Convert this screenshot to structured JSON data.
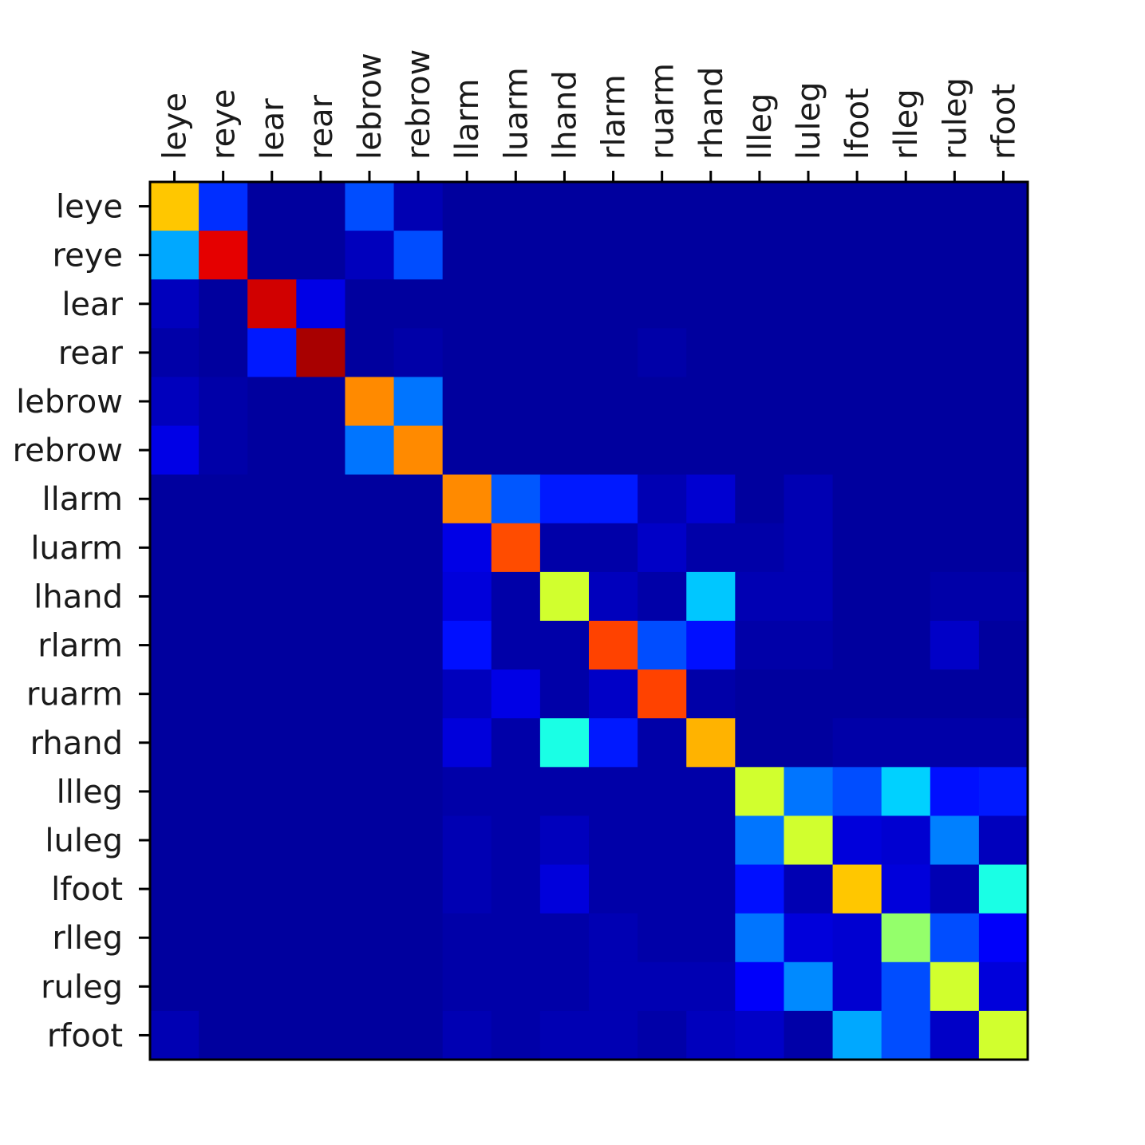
{
  "chart_data": {
    "type": "heatmap",
    "title": "",
    "xlabel": "",
    "ylabel": "",
    "colormap": "jet",
    "value_range": [
      0,
      1
    ],
    "grid": false,
    "x_axis_position": "top",
    "x_label_rotation": -90,
    "labels": [
      "leye",
      "reye",
      "lear",
      "rear",
      "lebrow",
      "rebrow",
      "llarm",
      "luarm",
      "lhand",
      "rlarm",
      "ruarm",
      "rhand",
      "llleg",
      "luleg",
      "lfoot",
      "rlleg",
      "ruleg",
      "rfoot"
    ],
    "matrix": [
      [
        0.68,
        0.17,
        0.03,
        0.03,
        0.2,
        0.05,
        0.03,
        0.03,
        0.03,
        0.03,
        0.03,
        0.03,
        0.03,
        0.03,
        0.03,
        0.03,
        0.03,
        0.03
      ],
      [
        0.29,
        0.9,
        0.03,
        0.03,
        0.06,
        0.2,
        0.03,
        0.03,
        0.03,
        0.03,
        0.03,
        0.03,
        0.03,
        0.03,
        0.03,
        0.03,
        0.03,
        0.03
      ],
      [
        0.06,
        0.03,
        0.92,
        0.1,
        0.03,
        0.03,
        0.03,
        0.03,
        0.03,
        0.03,
        0.03,
        0.03,
        0.03,
        0.03,
        0.03,
        0.03,
        0.03,
        0.03
      ],
      [
        0.04,
        0.03,
        0.15,
        0.96,
        0.03,
        0.04,
        0.03,
        0.03,
        0.03,
        0.03,
        0.04,
        0.03,
        0.03,
        0.03,
        0.03,
        0.03,
        0.03,
        0.03
      ],
      [
        0.06,
        0.04,
        0.03,
        0.03,
        0.74,
        0.24,
        0.03,
        0.03,
        0.03,
        0.03,
        0.03,
        0.03,
        0.03,
        0.03,
        0.03,
        0.03,
        0.03,
        0.03
      ],
      [
        0.1,
        0.04,
        0.03,
        0.03,
        0.24,
        0.74,
        0.03,
        0.03,
        0.03,
        0.03,
        0.03,
        0.03,
        0.03,
        0.03,
        0.03,
        0.03,
        0.03,
        0.03
      ],
      [
        0.03,
        0.03,
        0.03,
        0.03,
        0.03,
        0.03,
        0.74,
        0.21,
        0.15,
        0.15,
        0.05,
        0.08,
        0.03,
        0.05,
        0.03,
        0.03,
        0.03,
        0.03
      ],
      [
        0.03,
        0.03,
        0.03,
        0.03,
        0.03,
        0.03,
        0.1,
        0.8,
        0.04,
        0.04,
        0.07,
        0.04,
        0.04,
        0.05,
        0.03,
        0.03,
        0.03,
        0.03
      ],
      [
        0.03,
        0.03,
        0.03,
        0.03,
        0.03,
        0.03,
        0.09,
        0.04,
        0.58,
        0.06,
        0.04,
        0.32,
        0.05,
        0.05,
        0.03,
        0.03,
        0.04,
        0.04
      ],
      [
        0.03,
        0.03,
        0.03,
        0.03,
        0.03,
        0.03,
        0.14,
        0.04,
        0.04,
        0.81,
        0.2,
        0.14,
        0.04,
        0.04,
        0.03,
        0.03,
        0.07,
        0.03
      ],
      [
        0.03,
        0.03,
        0.03,
        0.03,
        0.03,
        0.03,
        0.06,
        0.1,
        0.04,
        0.07,
        0.81,
        0.04,
        0.03,
        0.03,
        0.03,
        0.03,
        0.03,
        0.03
      ],
      [
        0.03,
        0.03,
        0.03,
        0.03,
        0.03,
        0.03,
        0.09,
        0.04,
        0.4,
        0.15,
        0.04,
        0.7,
        0.03,
        0.03,
        0.04,
        0.04,
        0.04,
        0.04
      ],
      [
        0.03,
        0.03,
        0.03,
        0.03,
        0.03,
        0.03,
        0.04,
        0.04,
        0.04,
        0.04,
        0.04,
        0.04,
        0.58,
        0.24,
        0.2,
        0.33,
        0.14,
        0.15
      ],
      [
        0.03,
        0.03,
        0.03,
        0.03,
        0.03,
        0.03,
        0.05,
        0.04,
        0.06,
        0.04,
        0.04,
        0.04,
        0.24,
        0.58,
        0.09,
        0.08,
        0.25,
        0.06
      ],
      [
        0.03,
        0.03,
        0.03,
        0.03,
        0.03,
        0.03,
        0.05,
        0.04,
        0.09,
        0.04,
        0.04,
        0.04,
        0.14,
        0.05,
        0.68,
        0.09,
        0.05,
        0.4
      ],
      [
        0.03,
        0.03,
        0.03,
        0.03,
        0.03,
        0.03,
        0.04,
        0.04,
        0.04,
        0.05,
        0.04,
        0.04,
        0.24,
        0.09,
        0.08,
        0.52,
        0.2,
        0.12
      ],
      [
        0.03,
        0.03,
        0.03,
        0.03,
        0.03,
        0.03,
        0.04,
        0.04,
        0.04,
        0.05,
        0.05,
        0.05,
        0.12,
        0.26,
        0.08,
        0.2,
        0.58,
        0.09
      ],
      [
        0.05,
        0.03,
        0.03,
        0.03,
        0.03,
        0.03,
        0.05,
        0.04,
        0.05,
        0.05,
        0.04,
        0.06,
        0.07,
        0.04,
        0.29,
        0.2,
        0.07,
        0.58
      ]
    ]
  }
}
